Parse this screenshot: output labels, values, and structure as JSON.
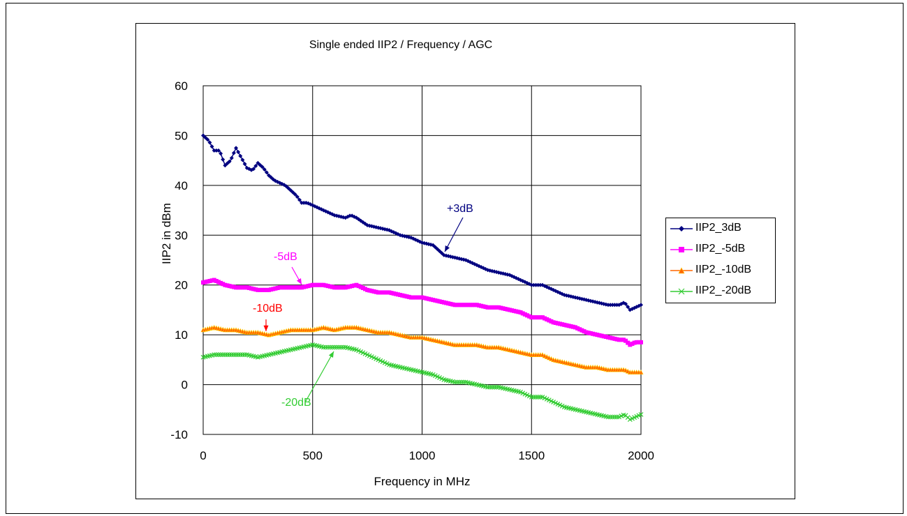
{
  "chart_data": {
    "type": "line",
    "title": "Single ended IIP2 / Frequency / AGC",
    "xlabel": "Frequency in MHz",
    "ylabel": "IIP2 in dBm",
    "xlim": [
      0,
      2000
    ],
    "ylim": [
      -10,
      60
    ],
    "xticks": [
      "0",
      "500",
      "1000",
      "1500",
      "2000"
    ],
    "yticks": [
      "-10",
      "0",
      "10",
      "20",
      "30",
      "40",
      "50",
      "60"
    ],
    "grid": true,
    "legend_position": "right",
    "series": [
      {
        "name": "IIP2_3dB",
        "color": "#000080",
        "marker": "diamond",
        "x": [
          0,
          25,
          50,
          75,
          100,
          125,
          150,
          175,
          200,
          225,
          250,
          275,
          300,
          325,
          350,
          375,
          400,
          425,
          450,
          475,
          500,
          550,
          600,
          650,
          675,
          700,
          750,
          800,
          850,
          900,
          950,
          1000,
          1050,
          1100,
          1150,
          1200,
          1250,
          1300,
          1350,
          1400,
          1450,
          1500,
          1550,
          1600,
          1650,
          1700,
          1750,
          1800,
          1850,
          1900,
          1925,
          1950,
          1975,
          2000
        ],
        "values": [
          50,
          49,
          47,
          47,
          44,
          45,
          47.5,
          45.5,
          43.5,
          43,
          44.5,
          43.5,
          42,
          41,
          40.5,
          40,
          39,
          38,
          36.5,
          36.5,
          36,
          35,
          34,
          33.5,
          34,
          33.5,
          32,
          31.5,
          31,
          30,
          29.5,
          28.5,
          28,
          26,
          25.5,
          25,
          24,
          23,
          22.5,
          22,
          21,
          20,
          20,
          19,
          18,
          17.5,
          17,
          16.5,
          16,
          16,
          16.5,
          15,
          15.5,
          16
        ]
      },
      {
        "name": "IIP2_-5dB",
        "color": "#ff00ff",
        "marker": "square",
        "x": [
          0,
          50,
          100,
          150,
          200,
          250,
          300,
          350,
          400,
          450,
          500,
          550,
          600,
          650,
          700,
          750,
          800,
          850,
          900,
          950,
          1000,
          1050,
          1100,
          1150,
          1200,
          1250,
          1300,
          1350,
          1400,
          1450,
          1500,
          1550,
          1600,
          1650,
          1700,
          1750,
          1800,
          1850,
          1900,
          1925,
          1950,
          1975,
          2000
        ],
        "values": [
          20.5,
          21,
          20,
          19.5,
          19.5,
          19,
          19,
          19.5,
          19.5,
          19.5,
          20,
          20,
          19.5,
          19.5,
          20,
          19,
          18.5,
          18.5,
          18,
          17.5,
          17.5,
          17,
          16.5,
          16,
          16,
          16,
          15.5,
          15.5,
          15,
          14.5,
          13.5,
          13.5,
          12.5,
          12,
          11.5,
          10.5,
          10,
          9.5,
          9,
          9,
          8,
          8.5,
          8.5
        ]
      },
      {
        "name": "IIP2_-10dB",
        "color": "#ff6600",
        "marker": "triangle",
        "x": [
          0,
          50,
          100,
          150,
          200,
          250,
          300,
          350,
          400,
          450,
          500,
          550,
          600,
          650,
          700,
          750,
          800,
          850,
          900,
          950,
          1000,
          1050,
          1100,
          1150,
          1200,
          1250,
          1300,
          1350,
          1400,
          1450,
          1500,
          1550,
          1600,
          1650,
          1700,
          1750,
          1800,
          1850,
          1900,
          1925,
          1950,
          1975,
          2000
        ],
        "values": [
          11,
          11.5,
          11,
          11,
          10.5,
          10.5,
          10,
          10.5,
          11,
          11,
          11,
          11.5,
          11,
          11.5,
          11.5,
          11,
          10.5,
          10.5,
          10,
          9.5,
          9.5,
          9,
          8.5,
          8,
          8,
          8,
          7.5,
          7.5,
          7,
          6.5,
          6,
          6,
          5,
          4.5,
          4,
          3.5,
          3.5,
          3,
          3,
          3,
          2.5,
          2.5,
          2.5
        ]
      },
      {
        "name": "IIP2_-20dB",
        "color": "#33cc33",
        "marker": "x",
        "x": [
          0,
          50,
          100,
          150,
          200,
          250,
          300,
          350,
          400,
          450,
          500,
          550,
          600,
          650,
          700,
          750,
          800,
          850,
          900,
          950,
          1000,
          1050,
          1100,
          1150,
          1200,
          1250,
          1300,
          1350,
          1400,
          1450,
          1500,
          1550,
          1600,
          1650,
          1700,
          1750,
          1800,
          1850,
          1900,
          1925,
          1950,
          1975,
          2000
        ],
        "values": [
          5.5,
          6,
          6,
          6,
          6,
          5.5,
          6,
          6.5,
          7,
          7.5,
          8,
          7.5,
          7.5,
          7.5,
          7,
          6,
          5,
          4,
          3.5,
          3,
          2.5,
          2,
          1,
          0.5,
          0.5,
          0,
          -0.5,
          -0.5,
          -1,
          -1.5,
          -2.5,
          -2.5,
          -3.5,
          -4.5,
          -5,
          -5.5,
          -6,
          -6.5,
          -6.5,
          -6,
          -7,
          -6.5,
          -6
        ]
      }
    ],
    "annotations": [
      {
        "text": "+3dB",
        "color": "#000080"
      },
      {
        "text": "-5dB",
        "color": "#ff00ff"
      },
      {
        "text": "-10dB",
        "color": "#ff0000"
      },
      {
        "text": "-20dB",
        "color": "#33cc33"
      }
    ]
  }
}
